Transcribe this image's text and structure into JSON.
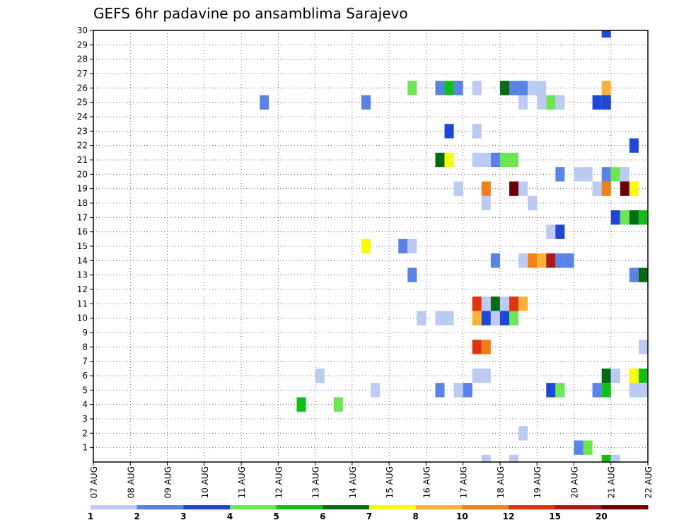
{
  "chart_data": {
    "type": "heatmap",
    "title": "GEFS 6hr padavine po ansamblima Sarajevo",
    "xlabel": "",
    "ylabel": "",
    "x_tick_labels": [
      "07 AUG",
      "08 AUG",
      "09 AUG",
      "10 AUG",
      "11 AUG",
      "12 AUG",
      "13 AUG",
      "14 AUG",
      "15 AUG",
      "16 AUG",
      "17 AUG",
      "18 AUG",
      "19 AUG",
      "20 AUG",
      "21 AUG",
      "22 AUG"
    ],
    "x_range_days": [
      0,
      15
    ],
    "x_step_days": 0.25,
    "y_tick_labels": [
      "1",
      "2",
      "3",
      "4",
      "5",
      "6",
      "7",
      "8",
      "9",
      "10",
      "11",
      "12",
      "13",
      "14",
      "15",
      "16",
      "17",
      "18",
      "19",
      "20",
      "21",
      "22",
      "23",
      "24",
      "25",
      "26",
      "27",
      "28",
      "29",
      "30"
    ],
    "y_range": [
      0,
      30
    ],
    "grid": true,
    "legend_position": "bottom colorbar",
    "colorbar": {
      "colors": [
        "#bccbf2",
        "#5a83e6",
        "#1f47d6",
        "#6ee653",
        "#0fbf16",
        "#086b13",
        "#fafa0a",
        "#f9b336",
        "#f57f16",
        "#e0340f",
        "#b11717",
        "#6b0008"
      ],
      "labels": [
        "1",
        "2",
        "3",
        "4",
        "5",
        "6",
        "7",
        "8",
        "10",
        "12",
        "15",
        "20"
      ],
      "thresholds": [
        1,
        2,
        3,
        4,
        5,
        6,
        7,
        8,
        10,
        12,
        15,
        20
      ]
    },
    "cells": [
      {
        "day": 14.0,
        "member": 30,
        "color": "#1f47d6"
      },
      {
        "day": 8.75,
        "member": 26,
        "color": "#6ee653"
      },
      {
        "day": 9.5,
        "member": 26,
        "color": "#5a83e6"
      },
      {
        "day": 9.75,
        "member": 26,
        "color": "#0fbf16"
      },
      {
        "day": 10.0,
        "member": 26,
        "color": "#5a83e6"
      },
      {
        "day": 10.5,
        "member": 26,
        "color": "#bccbf2"
      },
      {
        "day": 11.25,
        "member": 26,
        "color": "#086b13"
      },
      {
        "day": 11.5,
        "member": 26,
        "color": "#5a83e6"
      },
      {
        "day": 11.75,
        "member": 26,
        "color": "#5a83e6"
      },
      {
        "day": 12.0,
        "member": 26,
        "color": "#bccbf2"
      },
      {
        "day": 12.25,
        "member": 26,
        "color": "#bccbf2"
      },
      {
        "day": 14.0,
        "member": 26,
        "color": "#f9b336"
      },
      {
        "day": 4.75,
        "member": 25,
        "color": "#5a83e6"
      },
      {
        "day": 7.5,
        "member": 25,
        "color": "#5a83e6"
      },
      {
        "day": 11.75,
        "member": 25,
        "color": "#bccbf2"
      },
      {
        "day": 12.25,
        "member": 25,
        "color": "#bccbf2"
      },
      {
        "day": 12.5,
        "member": 25,
        "color": "#6ee653"
      },
      {
        "day": 12.75,
        "member": 25,
        "color": "#bccbf2"
      },
      {
        "day": 13.75,
        "member": 25,
        "color": "#1f47d6"
      },
      {
        "day": 14.0,
        "member": 25,
        "color": "#1f47d6"
      },
      {
        "day": 9.75,
        "member": 23,
        "color": "#1f47d6"
      },
      {
        "day": 10.5,
        "member": 23,
        "color": "#bccbf2"
      },
      {
        "day": 14.75,
        "member": 22,
        "color": "#1f47d6"
      },
      {
        "day": 9.5,
        "member": 21,
        "color": "#086b13"
      },
      {
        "day": 9.75,
        "member": 21,
        "color": "#fafa0a"
      },
      {
        "day": 10.5,
        "member": 21,
        "color": "#bccbf2"
      },
      {
        "day": 10.75,
        "member": 21,
        "color": "#bccbf2"
      },
      {
        "day": 11.0,
        "member": 21,
        "color": "#5a83e6"
      },
      {
        "day": 11.25,
        "member": 21,
        "color": "#6ee653"
      },
      {
        "day": 11.5,
        "member": 21,
        "color": "#6ee653"
      },
      {
        "day": 12.75,
        "member": 20,
        "color": "#5a83e6"
      },
      {
        "day": 13.25,
        "member": 20,
        "color": "#bccbf2"
      },
      {
        "day": 13.5,
        "member": 20,
        "color": "#bccbf2"
      },
      {
        "day": 14.0,
        "member": 20,
        "color": "#5a83e6"
      },
      {
        "day": 14.25,
        "member": 20,
        "color": "#6ee653"
      },
      {
        "day": 14.5,
        "member": 20,
        "color": "#bccbf2"
      },
      {
        "day": 10.0,
        "member": 19,
        "color": "#bccbf2"
      },
      {
        "day": 10.75,
        "member": 19,
        "color": "#f57f16"
      },
      {
        "day": 11.5,
        "member": 19,
        "color": "#6b0008"
      },
      {
        "day": 11.75,
        "member": 19,
        "color": "#bccbf2"
      },
      {
        "day": 13.75,
        "member": 19,
        "color": "#bccbf2"
      },
      {
        "day": 14.0,
        "member": 19,
        "color": "#f57f16"
      },
      {
        "day": 14.5,
        "member": 19,
        "color": "#6b0008"
      },
      {
        "day": 14.75,
        "member": 19,
        "color": "#fafa0a"
      },
      {
        "day": 10.75,
        "member": 18,
        "color": "#bccbf2"
      },
      {
        "day": 12.0,
        "member": 18,
        "color": "#bccbf2"
      },
      {
        "day": 14.25,
        "member": 17,
        "color": "#1f47d6"
      },
      {
        "day": 14.5,
        "member": 17,
        "color": "#6ee653"
      },
      {
        "day": 14.75,
        "member": 17,
        "color": "#086b13"
      },
      {
        "day": 15.0,
        "member": 17,
        "color": "#0fbf16"
      },
      {
        "day": 12.5,
        "member": 16,
        "color": "#bccbf2"
      },
      {
        "day": 12.75,
        "member": 16,
        "color": "#1f47d6"
      },
      {
        "day": 7.5,
        "member": 15,
        "color": "#fafa0a"
      },
      {
        "day": 8.5,
        "member": 15,
        "color": "#5a83e6"
      },
      {
        "day": 8.75,
        "member": 15,
        "color": "#bccbf2"
      },
      {
        "day": 11.0,
        "member": 14,
        "color": "#5a83e6"
      },
      {
        "day": 11.75,
        "member": 14,
        "color": "#bccbf2"
      },
      {
        "day": 12.0,
        "member": 14,
        "color": "#f57f16"
      },
      {
        "day": 12.25,
        "member": 14,
        "color": "#f9b336"
      },
      {
        "day": 12.5,
        "member": 14,
        "color": "#b11717"
      },
      {
        "day": 12.75,
        "member": 14,
        "color": "#5a83e6"
      },
      {
        "day": 13.0,
        "member": 14,
        "color": "#5a83e6"
      },
      {
        "day": 8.75,
        "member": 13,
        "color": "#5a83e6"
      },
      {
        "day": 14.75,
        "member": 13,
        "color": "#5a83e6"
      },
      {
        "day": 15.0,
        "member": 13,
        "color": "#086b13"
      },
      {
        "day": 10.5,
        "member": 11,
        "color": "#e0340f"
      },
      {
        "day": 10.75,
        "member": 11,
        "color": "#bccbf2"
      },
      {
        "day": 11.0,
        "member": 11,
        "color": "#086b13"
      },
      {
        "day": 11.25,
        "member": 11,
        "color": "#bccbf2"
      },
      {
        "day": 11.5,
        "member": 11,
        "color": "#e0340f"
      },
      {
        "day": 11.75,
        "member": 11,
        "color": "#f9b336"
      },
      {
        "day": 9.0,
        "member": 10,
        "color": "#bccbf2"
      },
      {
        "day": 9.5,
        "member": 10,
        "color": "#bccbf2"
      },
      {
        "day": 9.75,
        "member": 10,
        "color": "#bccbf2"
      },
      {
        "day": 10.5,
        "member": 10,
        "color": "#f9b336"
      },
      {
        "day": 10.75,
        "member": 10,
        "color": "#1f47d6"
      },
      {
        "day": 11.0,
        "member": 10,
        "color": "#bccbf2"
      },
      {
        "day": 11.25,
        "member": 10,
        "color": "#1f47d6"
      },
      {
        "day": 11.5,
        "member": 10,
        "color": "#6ee653"
      },
      {
        "day": 10.5,
        "member": 8,
        "color": "#e0340f"
      },
      {
        "day": 10.75,
        "member": 8,
        "color": "#f57f16"
      },
      {
        "day": 15.0,
        "member": 8,
        "color": "#bccbf2"
      },
      {
        "day": 14.0,
        "member": 6,
        "color": "#086b13"
      },
      {
        "day": 14.75,
        "member": 6,
        "color": "#fafa0a"
      },
      {
        "day": 15.0,
        "member": 6,
        "color": "#0fbf16"
      },
      {
        "day": 6.25,
        "member": 6,
        "color": "#bccbf2"
      },
      {
        "day": 10.5,
        "member": 6,
        "color": "#bccbf2"
      },
      {
        "day": 10.75,
        "member": 6,
        "color": "#bccbf2"
      },
      {
        "day": 14.25,
        "member": 6,
        "color": "#bccbf2"
      },
      {
        "day": 7.75,
        "member": 5,
        "color": "#bccbf2"
      },
      {
        "day": 9.5,
        "member": 5,
        "color": "#5a83e6"
      },
      {
        "day": 10.0,
        "member": 5,
        "color": "#bccbf2"
      },
      {
        "day": 10.25,
        "member": 5,
        "color": "#5a83e6"
      },
      {
        "day": 12.5,
        "member": 5,
        "color": "#1f47d6"
      },
      {
        "day": 12.75,
        "member": 5,
        "color": "#6ee653"
      },
      {
        "day": 13.75,
        "member": 5,
        "color": "#5a83e6"
      },
      {
        "day": 14.0,
        "member": 5,
        "color": "#0fbf16"
      },
      {
        "day": 14.75,
        "member": 5,
        "color": "#bccbf2"
      },
      {
        "day": 15.0,
        "member": 5,
        "color": "#bccbf2"
      },
      {
        "day": 5.75,
        "member": 4,
        "color": "#0fbf16"
      },
      {
        "day": 6.75,
        "member": 4,
        "color": "#6ee653"
      },
      {
        "day": 11.75,
        "member": 2,
        "color": "#bccbf2"
      },
      {
        "day": 13.25,
        "member": 1,
        "color": "#5a83e6"
      },
      {
        "day": 13.5,
        "member": 1,
        "color": "#6ee653"
      },
      {
        "day": 14.0,
        "member": 0,
        "color": "#0fbf16"
      },
      {
        "day": 10.75,
        "member": 0,
        "color": "#bccbf2"
      },
      {
        "day": 11.5,
        "member": 0,
        "color": "#bccbf2"
      },
      {
        "day": 14.25,
        "member": 0,
        "color": "#bccbf2"
      }
    ]
  }
}
